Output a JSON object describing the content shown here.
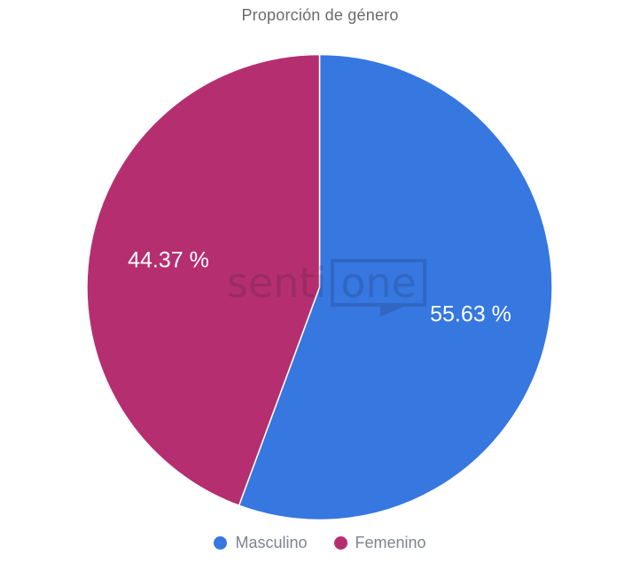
{
  "header": {
    "title": "Proporción de género"
  },
  "watermark": {
    "left_text": "senti",
    "right_text": "one"
  },
  "legend": {
    "items": [
      {
        "label": "Masculino",
        "color": "#3677e0"
      },
      {
        "label": "Femenino",
        "color": "#b52f70"
      }
    ]
  },
  "chart_data": {
    "type": "pie",
    "title": "Proporción de género",
    "categories": [
      "Masculino",
      "Femenino"
    ],
    "values": [
      55.63,
      44.37
    ],
    "value_labels": [
      "55.63 %",
      "44.37 %"
    ],
    "colors": [
      "#3677e0",
      "#b52f70"
    ],
    "unit": "%",
    "start_angle_deg": 0,
    "direction": "clockwise",
    "slice_border_color": "#ffffff",
    "value_label_color": "#ffffff",
    "legend_position": "bottom",
    "background": "#ffffff"
  }
}
